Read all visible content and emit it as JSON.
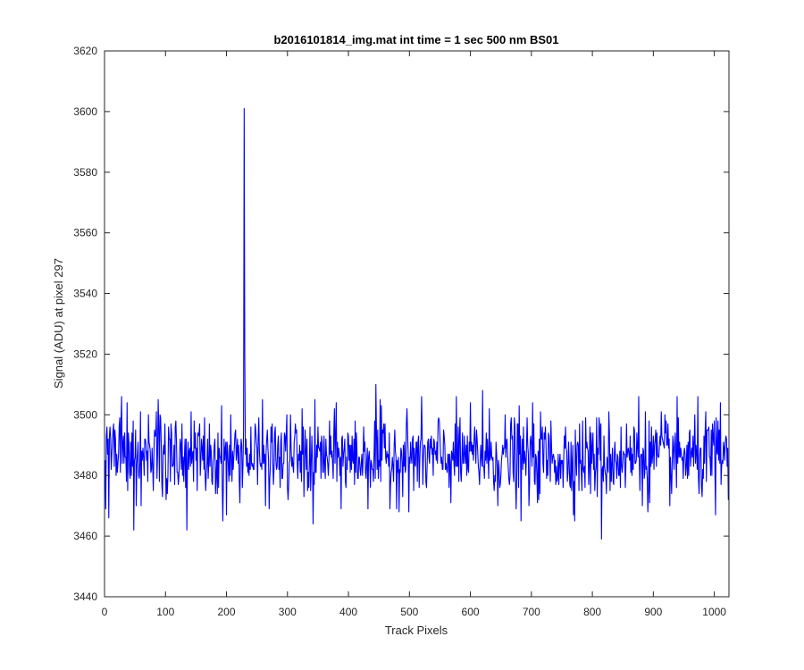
{
  "chart_data": {
    "type": "line",
    "title": "b2016101814_img.mat int time = 1 sec  500 nm BS01",
    "xlabel": "Track Pixels",
    "ylabel": "Signal (ADU) at pixel 297",
    "xlim": [
      0,
      1024
    ],
    "ylim": [
      3440,
      3620
    ],
    "xticks": [
      0,
      100,
      200,
      300,
      400,
      500,
      600,
      700,
      800,
      900,
      1000
    ],
    "yticks": [
      3440,
      3460,
      3480,
      3500,
      3520,
      3540,
      3560,
      3580,
      3600,
      3620
    ],
    "grid": false,
    "series": [
      {
        "color": "#0000ff",
        "noise": {
          "n_points": 1024,
          "baseline": 3486,
          "spread": 7,
          "min": 3459,
          "max": 3510
        },
        "points": [
          [
            2,
            3469
          ],
          [
            18,
            3492
          ],
          [
            28,
            3506
          ],
          [
            37,
            3504
          ],
          [
            48,
            3462
          ],
          [
            52,
            3470
          ],
          [
            88,
            3505
          ],
          [
            135,
            3462
          ],
          [
            200,
            3467
          ],
          [
            228,
            3495
          ],
          [
            229,
            3601
          ],
          [
            230,
            3520
          ],
          [
            342,
            3464
          ],
          [
            445,
            3510
          ],
          [
            620,
            3508
          ],
          [
            683,
            3465
          ],
          [
            815,
            3459
          ],
          [
            876,
            3506
          ],
          [
            1002,
            3467
          ],
          [
            1010,
            3504
          ],
          [
            1024,
            3480
          ]
        ]
      }
    ]
  }
}
